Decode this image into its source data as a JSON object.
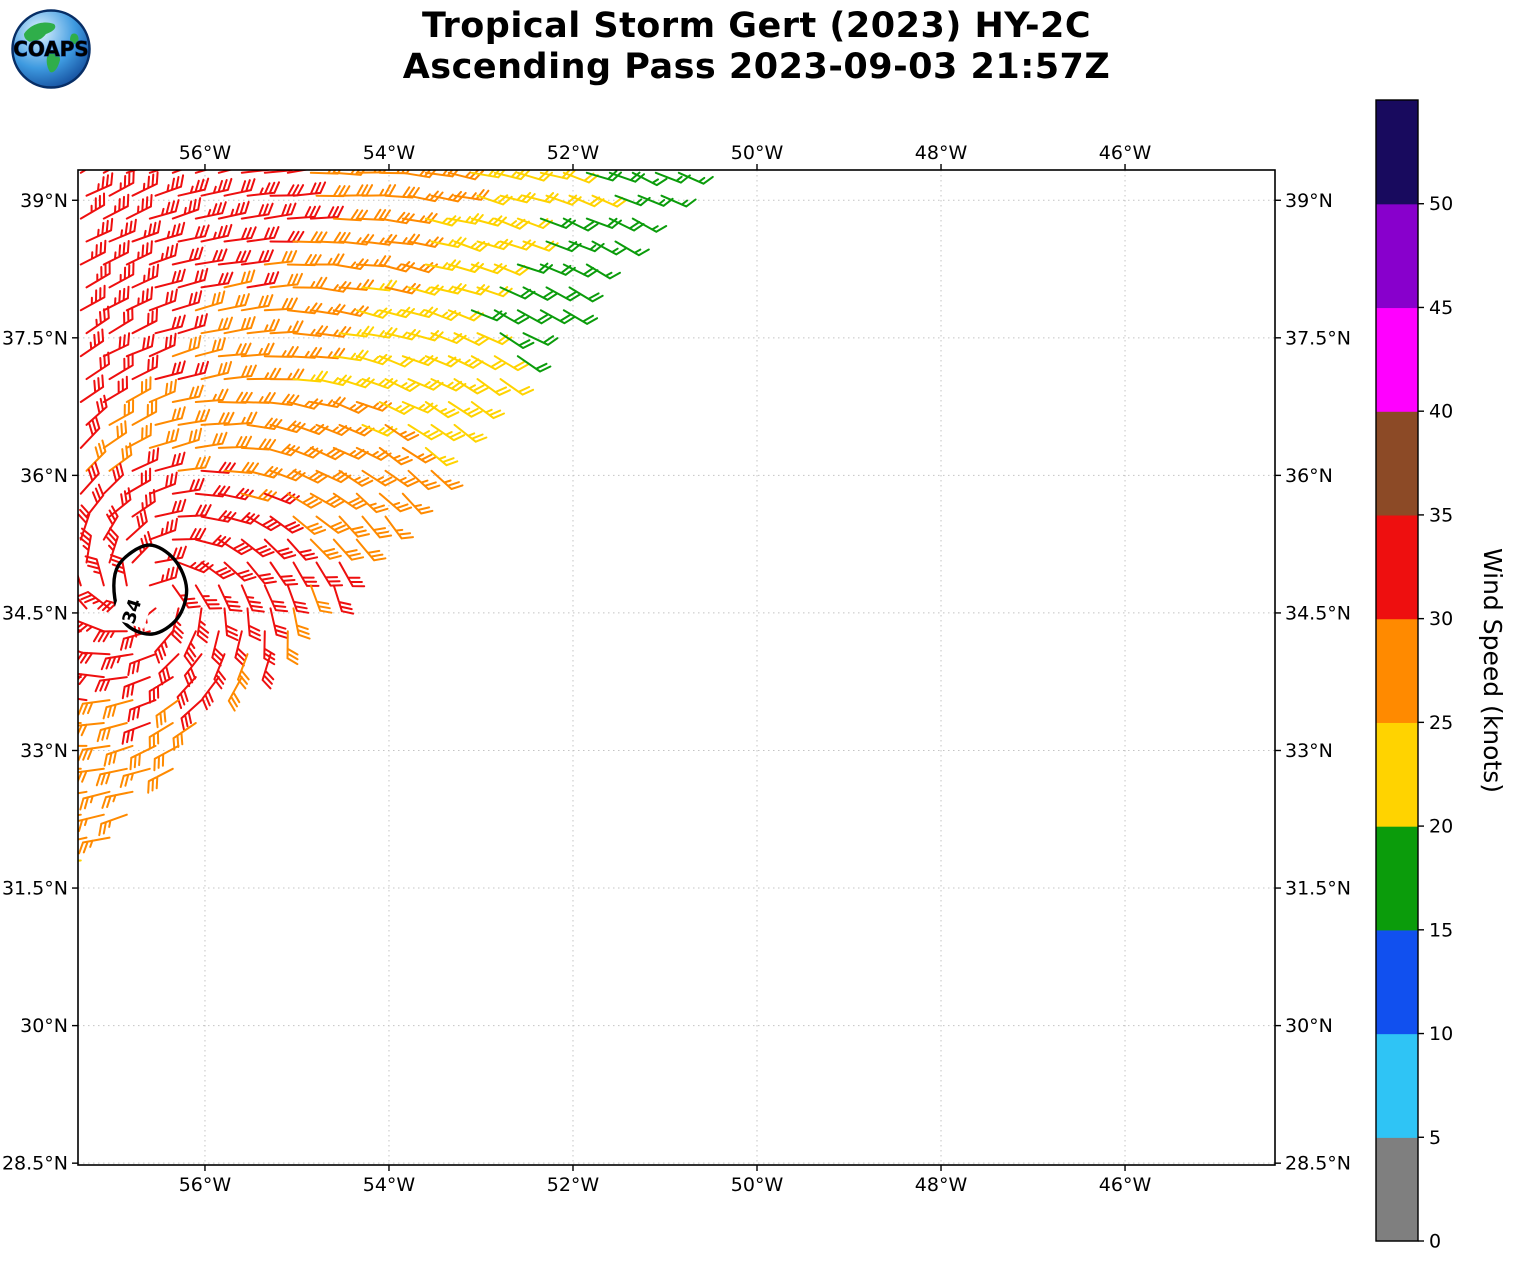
{
  "page": {
    "title_line1": "Tropical Storm Gert (2023) HY-2C",
    "title_line2": "Ascending Pass 2023-09-03 21:57Z"
  },
  "logo": {
    "text": "COAPS"
  },
  "chart_data": {
    "type": "scatter",
    "subtype": "satellite-scatterometer-wind-barb-map",
    "title": "Tropical Storm Gert (2023) HY-2C — Ascending Pass 2023-09-03 21:57Z",
    "storm": {
      "name": "Gert",
      "year": "2023",
      "instrument": "HY-2C",
      "pass_type": "Ascending",
      "datetime_utc": "2023-09-03 21:57Z"
    },
    "map": {
      "extent": {
        "lon_west": 57.38,
        "lon_east": 44.37,
        "lat_north": 39.33,
        "lat_south": 28.48
      },
      "lon_ticks": [
        56,
        54,
        52,
        50,
        48,
        46
      ],
      "lon_tick_labels": [
        "56°W",
        "54°W",
        "52°W",
        "50°W",
        "48°W",
        "46°W"
      ],
      "lat_ticks": [
        39,
        37.5,
        36,
        34.5,
        33,
        31.5,
        30,
        28.5
      ],
      "lat_tick_labels": [
        "39°N",
        "37.5°N",
        "36°N",
        "34.5°N",
        "33°N",
        "31.5°N",
        "30°N",
        "28.5°N"
      ],
      "grid": "dashed"
    },
    "colorbar": {
      "label": "Wind Speed (knots)",
      "tick_values": [
        0,
        5,
        10,
        15,
        20,
        25,
        30,
        35,
        40,
        45,
        50
      ],
      "segment_knots": 5,
      "max_knots": 55,
      "colors_bottom_to_top": [
        "#7f7f7f",
        "#2fc4f5",
        "#1150ef",
        "#0b9c0b",
        "#ffd300",
        "#ff8a00",
        "#ee0f0f",
        "#8c4a26",
        "#ff00ff",
        "#8800cc",
        "#180a5e"
      ]
    },
    "wind_field": {
      "description": "Scatterometer wind barbs fill a diagonal swath over the NW part of the map; speeds rise from ~15 kt (green) at the SE swath edge through yellow and orange to ~34 kt (red) near the storm centre and along the western side",
      "grid_spacing_deg": 0.25,
      "barb_conventions": {
        "full_barb_kt": 10,
        "half_barb_kt": 5
      },
      "swath_edge": {
        "lon_w_ref": 50.87,
        "lat_ref": 39.15,
        "dlat_per_dlonw": -1.152
      },
      "speed_model": {
        "base_kt": 15.5,
        "per_deg": 5.6,
        "quad": -0.25,
        "min_kt": 14.5,
        "max_kt": 33.8,
        "storm_term": {
          "v0_kt": 34,
          "falloff_per_deg": 3.5,
          "core_radius_deg": 0.25
        }
      },
      "direction_model": {
        "rotation": "cyclonic_ccw",
        "inflow_deg": 20
      },
      "speed_bins_visible": [
        {
          "range_kt": "15-20",
          "color": "#0b9c0b"
        },
        {
          "range_kt": "20-25",
          "color": "#ffd300"
        },
        {
          "range_kt": "25-30",
          "color": "#ff8a00"
        },
        {
          "range_kt": "30-35",
          "color": "#ee0f0f"
        }
      ]
    },
    "storm_center_contour": {
      "label": "34",
      "threshold_kt": 34,
      "center": {
        "lon_w": 56.6,
        "lat": 34.75
      },
      "outline_lonlat": [
        [
          56.62,
          35.24
        ],
        [
          56.33,
          35.08
        ],
        [
          56.2,
          34.76
        ],
        [
          56.3,
          34.44
        ],
        [
          56.57,
          34.27
        ],
        [
          56.85,
          34.37
        ],
        [
          56.98,
          34.66
        ],
        [
          56.94,
          35.02
        ]
      ],
      "label_pos": {
        "lon_w": 56.8,
        "lat": 34.52
      },
      "label_rotation_deg": -72
    }
  }
}
